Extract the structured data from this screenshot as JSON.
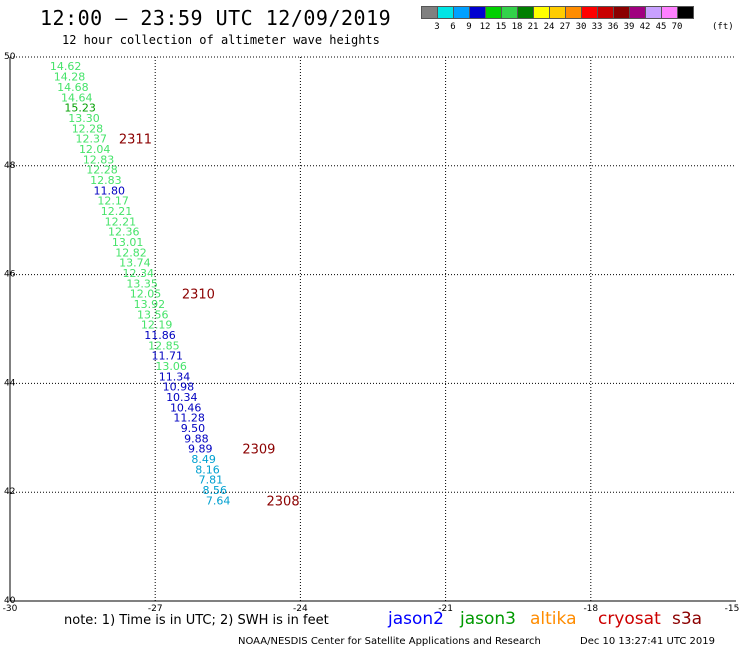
{
  "header": {
    "title": "12:00 – 23:59 UTC 12/09/2019",
    "subtitle": "12 hour collection of altimeter wave heights"
  },
  "scale": {
    "colors": [
      "#808080",
      "#00e5e5",
      "#00a0ff",
      "#0000d0",
      "#00d000",
      "#33d24a",
      "#007f00",
      "#ffff00",
      "#ffcc00",
      "#ff8c00",
      "#ff0000",
      "#c80000",
      "#8b0000",
      "#a0007f",
      "#c8a0ff",
      "#ff80ff",
      "#000000"
    ],
    "labels": [
      "3",
      "6",
      "9",
      "12",
      "15",
      "18",
      "21",
      "24",
      "27",
      "30",
      "33",
      "36",
      "39",
      "42",
      "45",
      "70"
    ],
    "unit": "(ft)"
  },
  "axes": {
    "x_ticks": [
      "-30",
      "-27",
      "-24",
      "-21",
      "-18",
      "-15"
    ],
    "y_ticks": [
      "40",
      "42",
      "44",
      "46",
      "48",
      "50"
    ]
  },
  "chart_data": {
    "type": "scatter",
    "xlim": [
      -30,
      -15
    ],
    "ylim": [
      40,
      50
    ],
    "grid": true,
    "points": [
      {
        "lon": -28.85,
        "lat": 49.83,
        "value": "14.62",
        "color": "#46e36a"
      },
      {
        "lon": -28.77,
        "lat": 49.64,
        "value": "14.28",
        "color": "#46e36a"
      },
      {
        "lon": -28.7,
        "lat": 49.45,
        "value": "14.68",
        "color": "#46e36a"
      },
      {
        "lon": -28.62,
        "lat": 49.26,
        "value": "14.64",
        "color": "#46e36a"
      },
      {
        "lon": -28.55,
        "lat": 49.07,
        "value": "15.23",
        "color": "#009f00"
      },
      {
        "lon": -28.47,
        "lat": 48.88,
        "value": "13.30",
        "color": "#46e36a"
      },
      {
        "lon": -28.4,
        "lat": 48.69,
        "value": "12.28",
        "color": "#46e36a"
      },
      {
        "lon": -28.32,
        "lat": 48.5,
        "value": "12.37",
        "color": "#46e36a"
      },
      {
        "lon": -28.25,
        "lat": 48.31,
        "value": "12.04",
        "color": "#46e36a"
      },
      {
        "lon": -28.17,
        "lat": 48.12,
        "value": "12.83",
        "color": "#46e36a"
      },
      {
        "lon": -28.1,
        "lat": 47.93,
        "value": "12.28",
        "color": "#46e36a"
      },
      {
        "lon": -28.02,
        "lat": 47.74,
        "value": "12.83",
        "color": "#46e36a"
      },
      {
        "lon": -27.95,
        "lat": 47.55,
        "value": "11.80",
        "color": "#0000c0"
      },
      {
        "lon": -27.87,
        "lat": 47.36,
        "value": "12.17",
        "color": "#46e36a"
      },
      {
        "lon": -27.8,
        "lat": 47.17,
        "value": "12.21",
        "color": "#46e36a"
      },
      {
        "lon": -27.72,
        "lat": 46.98,
        "value": "12.21",
        "color": "#46e36a"
      },
      {
        "lon": -27.65,
        "lat": 46.79,
        "value": "12.36",
        "color": "#46e36a"
      },
      {
        "lon": -27.57,
        "lat": 46.6,
        "value": "13.01",
        "color": "#46e36a"
      },
      {
        "lon": -27.5,
        "lat": 46.41,
        "value": "12.82",
        "color": "#46e36a"
      },
      {
        "lon": -27.42,
        "lat": 46.22,
        "value": "13.74",
        "color": "#46e36a"
      },
      {
        "lon": -27.35,
        "lat": 46.03,
        "value": "12.34",
        "color": "#46e36a"
      },
      {
        "lon": -27.27,
        "lat": 45.84,
        "value": "13.35",
        "color": "#46e36a"
      },
      {
        "lon": -27.2,
        "lat": 45.65,
        "value": "12.05",
        "color": "#46e36a"
      },
      {
        "lon": -27.12,
        "lat": 45.46,
        "value": "13.92",
        "color": "#46e36a"
      },
      {
        "lon": -27.05,
        "lat": 45.27,
        "value": "13.56",
        "color": "#46e36a"
      },
      {
        "lon": -26.97,
        "lat": 45.08,
        "value": "12.19",
        "color": "#46e36a"
      },
      {
        "lon": -26.9,
        "lat": 44.89,
        "value": "11.86",
        "color": "#0000c0"
      },
      {
        "lon": -26.82,
        "lat": 44.7,
        "value": "12.85",
        "color": "#46e36a"
      },
      {
        "lon": -26.75,
        "lat": 44.51,
        "value": "11.71",
        "color": "#0000c0"
      },
      {
        "lon": -26.67,
        "lat": 44.32,
        "value": "13.06",
        "color": "#46e36a"
      },
      {
        "lon": -26.6,
        "lat": 44.13,
        "value": "11.34",
        "color": "#0000c0"
      },
      {
        "lon": -26.52,
        "lat": 43.94,
        "value": "10.98",
        "color": "#0000c0"
      },
      {
        "lon": -26.45,
        "lat": 43.75,
        "value": "10.34",
        "color": "#0000c0"
      },
      {
        "lon": -26.37,
        "lat": 43.56,
        "value": "10.46",
        "color": "#0000c0"
      },
      {
        "lon": -26.3,
        "lat": 43.37,
        "value": "11.28",
        "color": "#0000c0"
      },
      {
        "lon": -26.22,
        "lat": 43.18,
        "value": "9.50",
        "color": "#0000c0"
      },
      {
        "lon": -26.15,
        "lat": 42.99,
        "value": "9.88",
        "color": "#0000c0"
      },
      {
        "lon": -26.07,
        "lat": 42.8,
        "value": "9.89",
        "color": "#0000c0"
      },
      {
        "lon": -26.0,
        "lat": 42.61,
        "value": "8.49",
        "color": "#00a0d0"
      },
      {
        "lon": -25.92,
        "lat": 42.42,
        "value": "8.16",
        "color": "#00a0d0"
      },
      {
        "lon": -25.85,
        "lat": 42.23,
        "value": "7.81",
        "color": "#00a0d0"
      },
      {
        "lon": -25.77,
        "lat": 42.04,
        "value": "8.56",
        "color": "#00a0d0"
      },
      {
        "lon": -25.7,
        "lat": 41.85,
        "value": "7.64",
        "color": "#00a0d0"
      }
    ],
    "pass_labels": [
      {
        "text": "2311",
        "lon": -27.75,
        "lat": 48.5
      },
      {
        "text": "2310",
        "lon": -26.45,
        "lat": 45.65
      },
      {
        "text": "2309",
        "lon": -25.2,
        "lat": 42.8
      },
      {
        "text": "2308",
        "lon": -24.7,
        "lat": 41.85
      }
    ],
    "pass_label_color": "#8b0000"
  },
  "legend": [
    {
      "label": "jason2",
      "color": "#0000ff"
    },
    {
      "label": "jason3",
      "color": "#009900"
    },
    {
      "label": "altika",
      "color": "#ff8c00"
    },
    {
      "label": "cryosat",
      "color": "#cc0000"
    },
    {
      "label": "s3a",
      "color": "#8b0000"
    }
  ],
  "footer": {
    "note": "note: 1) Time is in UTC; 2) SWH is in feet",
    "credit": "NOAA/NESDIS Center for Satellite Applications and Research",
    "timestamp": "Dec 10 13:27:41 UTC 2019"
  }
}
